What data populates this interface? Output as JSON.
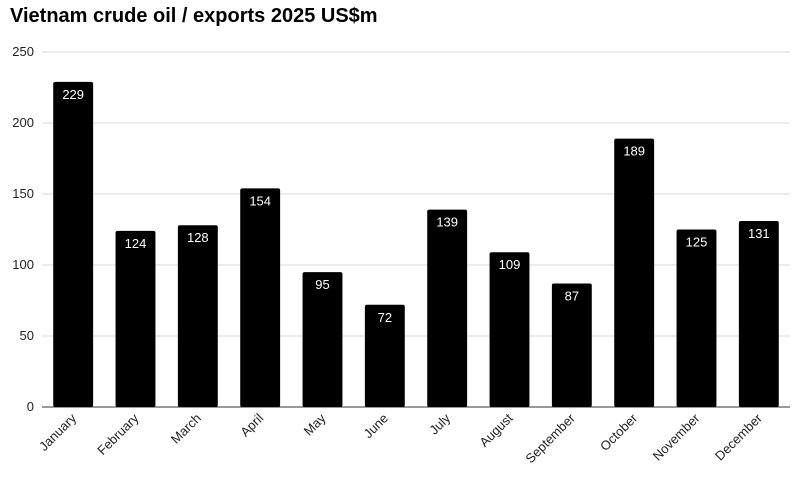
{
  "chart_data": {
    "type": "bar",
    "title": "Vietnam crude oil / exports 2025 US$m",
    "xlabel": "",
    "ylabel": "",
    "categories": [
      "January",
      "February",
      "March",
      "April",
      "May",
      "June",
      "July",
      "August",
      "September",
      "October",
      "November",
      "December"
    ],
    "values": [
      229,
      124,
      128,
      154,
      95,
      72,
      139,
      109,
      87,
      189,
      125,
      131
    ],
    "ylim": [
      0,
      250
    ],
    "yticks": [
      0,
      50,
      100,
      150,
      200,
      250
    ],
    "grid": true,
    "legend": "none",
    "data_labels": true,
    "colors": {
      "bar": "#000000",
      "label": "#ffffff",
      "grid": "#d9d9d9"
    }
  }
}
